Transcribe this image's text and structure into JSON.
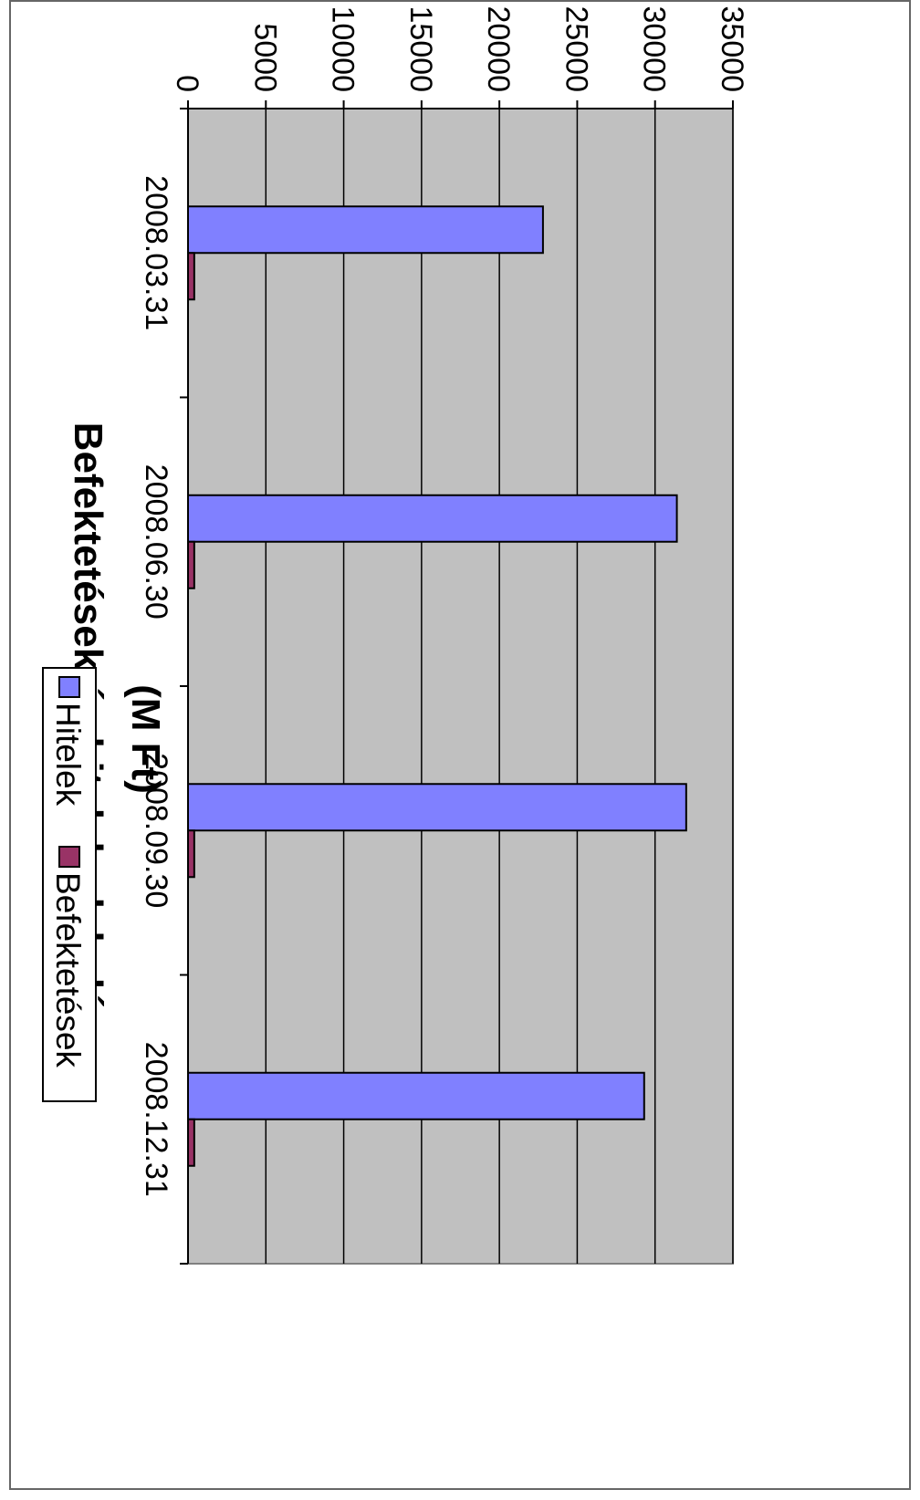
{
  "chart_data": {
    "type": "bar",
    "orientation": "column chart shown rotated 90° clockwise",
    "title_line1": "Befektetések és hitelek alakulása",
    "title_line2": "(M Ft)",
    "categories": [
      "2008.03.31",
      "2008.06.30",
      "2008.09.30",
      "2008.12.31"
    ],
    "series": [
      {
        "name": "Hitelek",
        "values": [
          22800,
          31400,
          32000,
          29300
        ],
        "color": "#8080ff"
      },
      {
        "name": "Befektetések",
        "values": [
          400,
          400,
          400,
          400
        ],
        "color": "#993366"
      }
    ],
    "y_ticks": [
      "0",
      "5000",
      "10000",
      "15000",
      "20000",
      "25000",
      "30000",
      "35000"
    ],
    "ylim": [
      0,
      35000
    ],
    "grid": true,
    "plot_background": "#c0c0c0",
    "legend_position": "below plot"
  }
}
